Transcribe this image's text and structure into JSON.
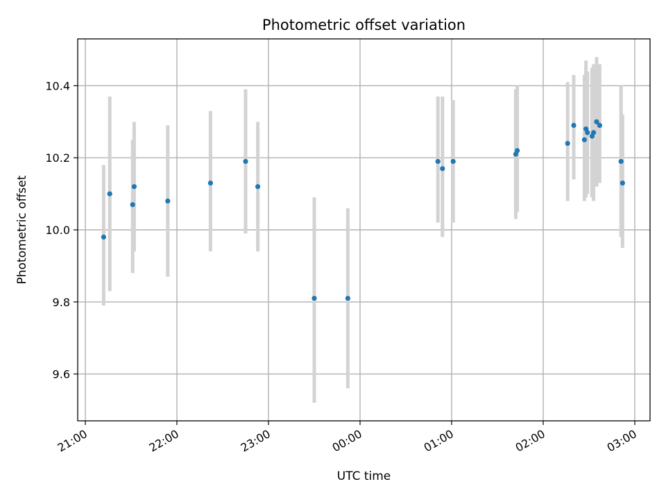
{
  "chart_data": {
    "type": "scatter",
    "title": "Photometric offset variation",
    "xlabel": "UTC time",
    "ylabel": "Photometric offset",
    "grid": true,
    "x_axis_kind": "time",
    "xlim": [
      "20:55",
      "03:10"
    ],
    "ylim": [
      9.47,
      10.53
    ],
    "x_ticks": [
      "21:00",
      "22:00",
      "23:00",
      "00:00",
      "01:00",
      "02:00",
      "03:00"
    ],
    "y_ticks": [
      "9.6",
      "9.8",
      "10.0",
      "10.2",
      "10.4"
    ],
    "colors": {
      "points": "#1f77b4",
      "errorbars": "#d3d3d3"
    },
    "series": [
      {
        "values_units": "time HH:MM, offset, error_low, error_high",
        "points": [
          {
            "x": "21:12",
            "y": 9.98,
            "lo": 9.79,
            "hi": 10.18
          },
          {
            "x": "21:16",
            "y": 10.1,
            "lo": 9.83,
            "hi": 10.37
          },
          {
            "x": "21:31",
            "y": 10.07,
            "lo": 9.88,
            "hi": 10.25
          },
          {
            "x": "21:32",
            "y": 10.12,
            "lo": 9.94,
            "hi": 10.3
          },
          {
            "x": "21:54",
            "y": 10.08,
            "lo": 9.87,
            "hi": 10.29
          },
          {
            "x": "22:22",
            "y": 10.13,
            "lo": 9.94,
            "hi": 10.33
          },
          {
            "x": "22:45",
            "y": 10.19,
            "lo": 9.99,
            "hi": 10.39
          },
          {
            "x": "22:53",
            "y": 10.12,
            "lo": 9.94,
            "hi": 10.3
          },
          {
            "x": "23:30",
            "y": 9.81,
            "lo": 9.52,
            "hi": 10.09
          },
          {
            "x": "23:52",
            "y": 9.81,
            "lo": 9.56,
            "hi": 10.06
          },
          {
            "x": "00:51",
            "y": 10.19,
            "lo": 10.02,
            "hi": 10.37
          },
          {
            "x": "00:54",
            "y": 10.17,
            "lo": 9.98,
            "hi": 10.37
          },
          {
            "x": "01:01",
            "y": 10.19,
            "lo": 10.02,
            "hi": 10.36
          },
          {
            "x": "01:42",
            "y": 10.21,
            "lo": 10.03,
            "hi": 10.39
          },
          {
            "x": "01:43",
            "y": 10.22,
            "lo": 10.05,
            "hi": 10.4
          },
          {
            "x": "02:16",
            "y": 10.24,
            "lo": 10.08,
            "hi": 10.41
          },
          {
            "x": "02:20",
            "y": 10.29,
            "lo": 10.14,
            "hi": 10.43
          },
          {
            "x": "02:27",
            "y": 10.25,
            "lo": 10.08,
            "hi": 10.43
          },
          {
            "x": "02:28",
            "y": 10.28,
            "lo": 10.09,
            "hi": 10.47
          },
          {
            "x": "02:29",
            "y": 10.27,
            "lo": 10.1,
            "hi": 10.44
          },
          {
            "x": "02:32",
            "y": 10.26,
            "lo": 10.09,
            "hi": 10.45
          },
          {
            "x": "02:33",
            "y": 10.27,
            "lo": 10.08,
            "hi": 10.46
          },
          {
            "x": "02:35",
            "y": 10.3,
            "lo": 10.12,
            "hi": 10.48
          },
          {
            "x": "02:37",
            "y": 10.29,
            "lo": 10.13,
            "hi": 10.46
          },
          {
            "x": "02:51",
            "y": 10.19,
            "lo": 9.98,
            "hi": 10.4
          },
          {
            "x": "02:52",
            "y": 10.13,
            "lo": 9.95,
            "hi": 10.32
          }
        ]
      }
    ]
  }
}
